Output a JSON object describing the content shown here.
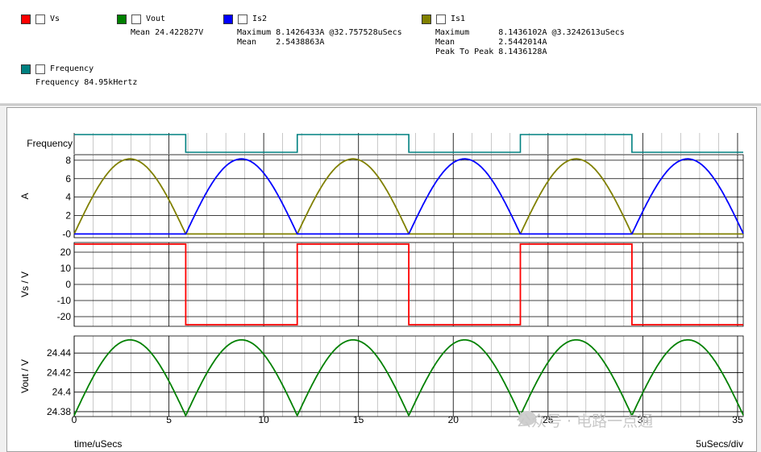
{
  "legend": {
    "vs": {
      "name": "Vs",
      "color": "#ff0000"
    },
    "vout": {
      "name": "Vout",
      "color": "#008000",
      "rows": [
        "Mean 24.422827V"
      ]
    },
    "is2": {
      "name": "Is2",
      "color": "#0000ff",
      "rows": [
        "Maximum 8.1426433A @32.757528uSecs",
        "Mean    2.5438863A"
      ]
    },
    "is1": {
      "name": "Is1",
      "color": "#808000",
      "rows": [
        "Maximum      8.1436102A @3.3242613uSecs",
        "Mean         2.5442014A",
        "Peak To Peak 8.1436128A"
      ]
    },
    "frequency": {
      "name": "Frequency",
      "color": "#008080",
      "rows": [
        "Frequency 84.95kHertz"
      ]
    }
  },
  "watermark": "公众号 · 电路一点通",
  "chart_data": {
    "type": "line",
    "x_axis": {
      "label": "time/uSecs",
      "scale_label": "5uSecs/div",
      "range": [
        0,
        35.3
      ],
      "ticks": [
        0,
        5,
        10,
        15,
        20,
        25,
        30,
        35
      ],
      "tick_labels": [
        "0",
        "5",
        "10",
        "15",
        "20",
        "25",
        "30",
        "35"
      ]
    },
    "half_period_us": 5.885,
    "panels": [
      {
        "id": "frequency",
        "ylabel": "Frequency",
        "series": [
          {
            "name": "Frequency",
            "color": "#008080",
            "kind": "square",
            "high_first": true
          }
        ]
      },
      {
        "id": "current",
        "ylabel": "A",
        "ylim": [
          -0.4,
          8.6
        ],
        "yticks": [
          0,
          2,
          4,
          6,
          8
        ],
        "ytick_labels": [
          "-0",
          "2",
          "4",
          "6",
          "8"
        ],
        "series": [
          {
            "name": "Is1",
            "color": "#808000",
            "kind": "half_sine",
            "peak": 8.1436102,
            "phase": "even"
          },
          {
            "name": "Is2",
            "color": "#0000ff",
            "kind": "half_sine",
            "peak": 8.1426433,
            "phase": "odd"
          }
        ]
      },
      {
        "id": "vs",
        "ylabel": "Vs / V",
        "ylim": [
          -26,
          26
        ],
        "yticks": [
          20,
          10,
          0,
          -10,
          -20
        ],
        "ytick_labels": [
          "20",
          "10",
          "0",
          "-10",
          "-20"
        ],
        "series": [
          {
            "name": "Vs",
            "color": "#ff0000",
            "kind": "square",
            "high": 25,
            "low": -25
          }
        ]
      },
      {
        "id": "vout",
        "ylabel": "Vout / V",
        "ylim": [
          24.375,
          24.4575
        ],
        "yticks": [
          24.44,
          24.42,
          24.4,
          24.38
        ],
        "ytick_labels": [
          "24.44",
          "24.42",
          "24.4",
          "24.38"
        ],
        "series": [
          {
            "name": "Vout",
            "color": "#008000",
            "kind": "abs_sine",
            "min": 24.376,
            "max": 24.4535
          }
        ]
      }
    ]
  }
}
